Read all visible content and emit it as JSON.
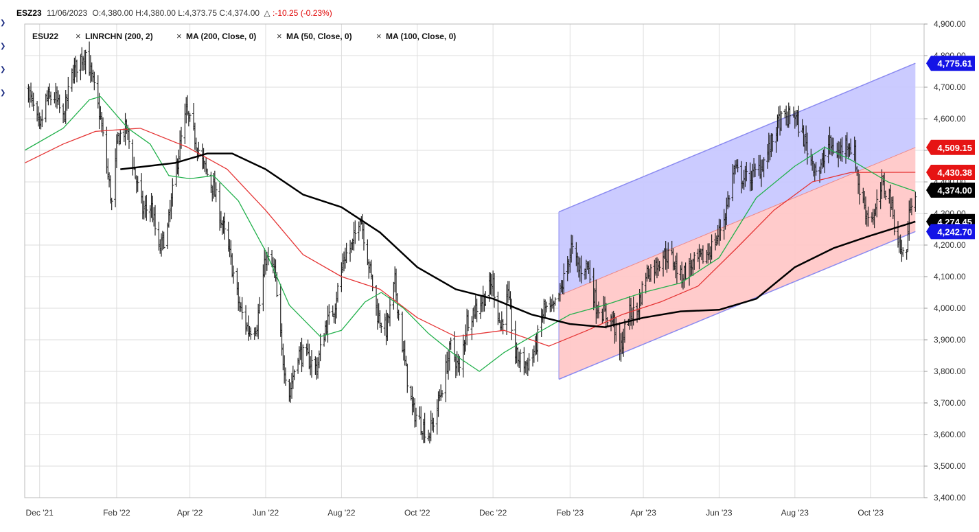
{
  "header": {
    "symbol": "ESZ23",
    "date": "11/06/2023",
    "ohlc": "O:4,380.00 H:4,380.00 L:4,373.75 C:4,374.00",
    "change_symbol": "△",
    "change": ":-10.25 (-0.23%)",
    "change_color": "#e00000"
  },
  "legend": [
    {
      "label": "ESU22",
      "has_remove": false
    },
    {
      "label": "LINRCHN (200, 2)",
      "has_remove": true
    },
    {
      "label": "MA (200, Close, 0)",
      "has_remove": true
    },
    {
      "label": "MA (50, Close, 0)",
      "has_remove": true
    },
    {
      "label": "MA (100, Close, 0)",
      "has_remove": true
    }
  ],
  "remove_glyph": "×",
  "side_arrow_glyph": "❯",
  "colors": {
    "price": "#000000",
    "ma50": "#21b04b",
    "ma100": "#e53434",
    "ma200": "#000000",
    "channel_upper_fill": "#c8c8ff",
    "channel_lower_fill": "#ffc8c8",
    "channel_edge": "#8a8af0",
    "grid": "#dddddd"
  },
  "chart_data": {
    "type": "line",
    "ylim": [
      3400,
      4900
    ],
    "y_ticks": [
      "3,400.00",
      "3,500.00",
      "3,600.00",
      "3,700.00",
      "3,800.00",
      "3,900.00",
      "4,000.00",
      "4,100.00",
      "4,200.00",
      "4,300.00",
      "4,400.00",
      "4,500.00",
      "4,600.00",
      "4,700.00",
      "4,800.00",
      "4,900.00"
    ],
    "x_tick_labels": [
      "Dec '21",
      "Feb '22",
      "Apr '22",
      "Jun '22",
      "Aug '22",
      "Oct '22",
      "Dec '22",
      "Feb '23",
      "Apr '23",
      "Jun '23",
      "Aug '23",
      "Oct '23"
    ],
    "x_tick_dates": [
      "2021-12-01",
      "2022-02-01",
      "2022-04-01",
      "2022-06-01",
      "2022-08-01",
      "2022-10-01",
      "2022-12-01",
      "2023-02-01",
      "2023-04-01",
      "2023-06-01",
      "2023-08-01",
      "2023-10-01"
    ],
    "x_range": [
      "2021-11-19",
      "2023-11-13"
    ],
    "grid": true,
    "series": [
      {
        "name": "ESU22",
        "kind": "ohlc_bars",
        "closes": [
          [
            "2021-11-22",
            4690
          ],
          [
            "2021-12-01",
            4560
          ],
          [
            "2021-12-06",
            4660
          ],
          [
            "2021-12-13",
            4670
          ],
          [
            "2021-12-20",
            4600
          ],
          [
            "2021-12-27",
            4740
          ],
          [
            "2022-01-03",
            4790
          ],
          [
            "2022-01-07",
            4810
          ],
          [
            "2022-01-12",
            4730
          ],
          [
            "2022-01-19",
            4600
          ],
          [
            "2022-01-24",
            4450
          ],
          [
            "2022-01-28",
            4330
          ],
          [
            "2022-02-02",
            4540
          ],
          [
            "2022-02-09",
            4570
          ],
          [
            "2022-02-16",
            4420
          ],
          [
            "2022-02-22",
            4310
          ],
          [
            "2022-03-01",
            4320
          ],
          [
            "2022-03-07",
            4180
          ],
          [
            "2022-03-14",
            4250
          ],
          [
            "2022-03-21",
            4450
          ],
          [
            "2022-03-29",
            4620
          ],
          [
            "2022-04-05",
            4540
          ],
          [
            "2022-04-12",
            4450
          ],
          [
            "2022-04-20",
            4380
          ],
          [
            "2022-04-28",
            4250
          ],
          [
            "2022-05-04",
            4150
          ],
          [
            "2022-05-11",
            4000
          ],
          [
            "2022-05-18",
            3930
          ],
          [
            "2022-05-25",
            3950
          ],
          [
            "2022-06-01",
            4160
          ],
          [
            "2022-06-08",
            4120
          ],
          [
            "2022-06-14",
            3860
          ],
          [
            "2022-06-20",
            3730
          ],
          [
            "2022-06-27",
            3860
          ],
          [
            "2022-07-05",
            3840
          ],
          [
            "2022-07-12",
            3810
          ],
          [
            "2022-07-19",
            3940
          ],
          [
            "2022-07-26",
            4000
          ],
          [
            "2022-08-03",
            4160
          ],
          [
            "2022-08-10",
            4200
          ],
          [
            "2022-08-16",
            4300
          ],
          [
            "2022-08-23",
            4140
          ],
          [
            "2022-08-30",
            3980
          ],
          [
            "2022-09-06",
            3930
          ],
          [
            "2022-09-13",
            4080
          ],
          [
            "2022-09-20",
            3850
          ],
          [
            "2022-09-27",
            3680
          ],
          [
            "2022-10-03",
            3640
          ],
          [
            "2022-10-10",
            3600
          ],
          [
            "2022-10-14",
            3640
          ],
          [
            "2022-10-21",
            3750
          ],
          [
            "2022-10-28",
            3880
          ],
          [
            "2022-11-04",
            3800
          ],
          [
            "2022-11-10",
            3960
          ],
          [
            "2022-11-17",
            4000
          ],
          [
            "2022-11-23",
            4030
          ],
          [
            "2022-12-01",
            4080
          ],
          [
            "2022-12-07",
            3940
          ],
          [
            "2022-12-13",
            4040
          ],
          [
            "2022-12-19",
            3850
          ],
          [
            "2022-12-28",
            3820
          ],
          [
            "2023-01-04",
            3870
          ],
          [
            "2023-01-11",
            4000
          ],
          [
            "2023-01-18",
            3990
          ],
          [
            "2023-01-25",
            4060
          ],
          [
            "2023-02-02",
            4190
          ],
          [
            "2023-02-08",
            4120
          ],
          [
            "2023-02-15",
            4140
          ],
          [
            "2023-02-22",
            4010
          ],
          [
            "2023-03-01",
            3980
          ],
          [
            "2023-03-08",
            3960
          ],
          [
            "2023-03-13",
            3860
          ],
          [
            "2023-03-20",
            3980
          ],
          [
            "2023-03-27",
            3990
          ],
          [
            "2023-04-03",
            4110
          ],
          [
            "2023-04-10",
            4130
          ],
          [
            "2023-04-17",
            4170
          ],
          [
            "2023-04-24",
            4160
          ],
          [
            "2023-05-01",
            4100
          ],
          [
            "2023-05-08",
            4130
          ],
          [
            "2023-05-15",
            4150
          ],
          [
            "2023-05-22",
            4170
          ],
          [
            "2023-05-30",
            4220
          ],
          [
            "2023-06-06",
            4300
          ],
          [
            "2023-06-13",
            4440
          ],
          [
            "2023-06-20",
            4410
          ],
          [
            "2023-06-28",
            4420
          ],
          [
            "2023-07-05",
            4450
          ],
          [
            "2023-07-12",
            4510
          ],
          [
            "2023-07-19",
            4590
          ],
          [
            "2023-07-26",
            4600
          ],
          [
            "2023-07-31",
            4620
          ],
          [
            "2023-08-07",
            4550
          ],
          [
            "2023-08-14",
            4470
          ],
          [
            "2023-08-21",
            4430
          ],
          [
            "2023-08-28",
            4520
          ],
          [
            "2023-09-05",
            4490
          ],
          [
            "2023-09-12",
            4530
          ],
          [
            "2023-09-18",
            4490
          ],
          [
            "2023-09-22",
            4370
          ],
          [
            "2023-09-28",
            4300
          ],
          [
            "2023-10-04",
            4290
          ],
          [
            "2023-10-10",
            4390
          ],
          [
            "2023-10-16",
            4360
          ],
          [
            "2023-10-20",
            4270
          ],
          [
            "2023-10-26",
            4170
          ],
          [
            "2023-10-30",
            4190
          ],
          [
            "2023-11-02",
            4340
          ],
          [
            "2023-11-06",
            4374
          ]
        ]
      },
      {
        "name": "MA (50, Close, 0)",
        "kind": "line",
        "points": [
          [
            "2021-11-19",
            4500
          ],
          [
            "2021-12-20",
            4570
          ],
          [
            "2022-01-10",
            4660
          ],
          [
            "2022-01-19",
            4670
          ],
          [
            "2022-02-10",
            4570
          ],
          [
            "2022-02-28",
            4520
          ],
          [
            "2022-03-15",
            4420
          ],
          [
            "2022-04-01",
            4410
          ],
          [
            "2022-04-20",
            4420
          ],
          [
            "2022-05-10",
            4340
          ],
          [
            "2022-06-01",
            4180
          ],
          [
            "2022-06-20",
            4010
          ],
          [
            "2022-07-15",
            3910
          ],
          [
            "2022-08-01",
            3930
          ],
          [
            "2022-08-20",
            4020
          ],
          [
            "2022-09-02",
            4050
          ],
          [
            "2022-09-20",
            4000
          ],
          [
            "2022-10-10",
            3920
          ],
          [
            "2022-11-01",
            3850
          ],
          [
            "2022-11-20",
            3800
          ],
          [
            "2022-12-10",
            3860
          ],
          [
            "2023-01-05",
            3920
          ],
          [
            "2023-02-01",
            3980
          ],
          [
            "2023-03-01",
            4010
          ],
          [
            "2023-04-01",
            4050
          ],
          [
            "2023-05-01",
            4080
          ],
          [
            "2023-06-01",
            4160
          ],
          [
            "2023-07-01",
            4350
          ],
          [
            "2023-08-01",
            4450
          ],
          [
            "2023-08-25",
            4510
          ],
          [
            "2023-09-15",
            4470
          ],
          [
            "2023-10-15",
            4400
          ],
          [
            "2023-11-06",
            4370
          ]
        ]
      },
      {
        "name": "MA (100, Close, 0)",
        "kind": "line",
        "points": [
          [
            "2021-11-19",
            4460
          ],
          [
            "2021-12-20",
            4520
          ],
          [
            "2022-01-15",
            4560
          ],
          [
            "2022-02-20",
            4570
          ],
          [
            "2022-03-30",
            4510
          ],
          [
            "2022-05-01",
            4440
          ],
          [
            "2022-06-01",
            4310
          ],
          [
            "2022-07-01",
            4170
          ],
          [
            "2022-08-01",
            4100
          ],
          [
            "2022-09-01",
            4060
          ],
          [
            "2022-10-01",
            3970
          ],
          [
            "2022-11-01",
            3910
          ],
          [
            "2022-12-10",
            3930
          ],
          [
            "2023-01-15",
            3880
          ],
          [
            "2023-02-15",
            3930
          ],
          [
            "2023-03-15",
            3980
          ],
          [
            "2023-04-15",
            4020
          ],
          [
            "2023-05-15",
            4070
          ],
          [
            "2023-06-15",
            4190
          ],
          [
            "2023-07-15",
            4310
          ],
          [
            "2023-08-15",
            4400
          ],
          [
            "2023-09-15",
            4430
          ],
          [
            "2023-11-06",
            4430.38
          ]
        ]
      },
      {
        "name": "MA (200, Close, 0)",
        "kind": "line",
        "points": [
          [
            "2022-02-04",
            4440
          ],
          [
            "2022-03-20",
            4460
          ],
          [
            "2022-04-15",
            4490
          ],
          [
            "2022-05-05",
            4490
          ],
          [
            "2022-06-01",
            4440
          ],
          [
            "2022-07-01",
            4360
          ],
          [
            "2022-08-01",
            4320
          ],
          [
            "2022-09-01",
            4240
          ],
          [
            "2022-10-01",
            4130
          ],
          [
            "2022-11-01",
            4060
          ],
          [
            "2022-12-01",
            4030
          ],
          [
            "2023-01-01",
            3980
          ],
          [
            "2023-02-01",
            3950
          ],
          [
            "2023-03-01",
            3940
          ],
          [
            "2023-04-01",
            3970
          ],
          [
            "2023-05-01",
            3990
          ],
          [
            "2023-06-01",
            3995
          ],
          [
            "2023-07-01",
            4030
          ],
          [
            "2023-08-01",
            4130
          ],
          [
            "2023-09-01",
            4190
          ],
          [
            "2023-10-01",
            4230
          ],
          [
            "2023-11-06",
            4274.45
          ]
        ]
      },
      {
        "name": "LINRCHN (200, 2)",
        "kind": "channel",
        "start": "2023-01-23",
        "end": "2023-11-06",
        "upper": [
          4305,
          4775.61
        ],
        "middle": [
          4040,
          4509.15
        ],
        "lower": [
          3775,
          4242.7
        ]
      }
    ]
  },
  "price_labels": [
    {
      "text": "4,775.61",
      "value": 4775.61,
      "bg": "#1414e6",
      "fg": "#ffffff"
    },
    {
      "text": "4,509.15",
      "value": 4509.15,
      "bg": "#e61414",
      "fg": "#ffffff"
    },
    {
      "text": "4,430.38",
      "value": 4430.38,
      "bg": "#e61414",
      "fg": "#ffffff"
    },
    {
      "text": "4,374.00",
      "value": 4374.0,
      "bg": "#000000",
      "fg": "#ffffff"
    },
    {
      "text": "4,274.45",
      "value": 4274.45,
      "bg": "#000000",
      "fg": "#ffffff"
    },
    {
      "text": "4,242.70",
      "value": 4242.7,
      "bg": "#1414e6",
      "fg": "#ffffff"
    }
  ]
}
